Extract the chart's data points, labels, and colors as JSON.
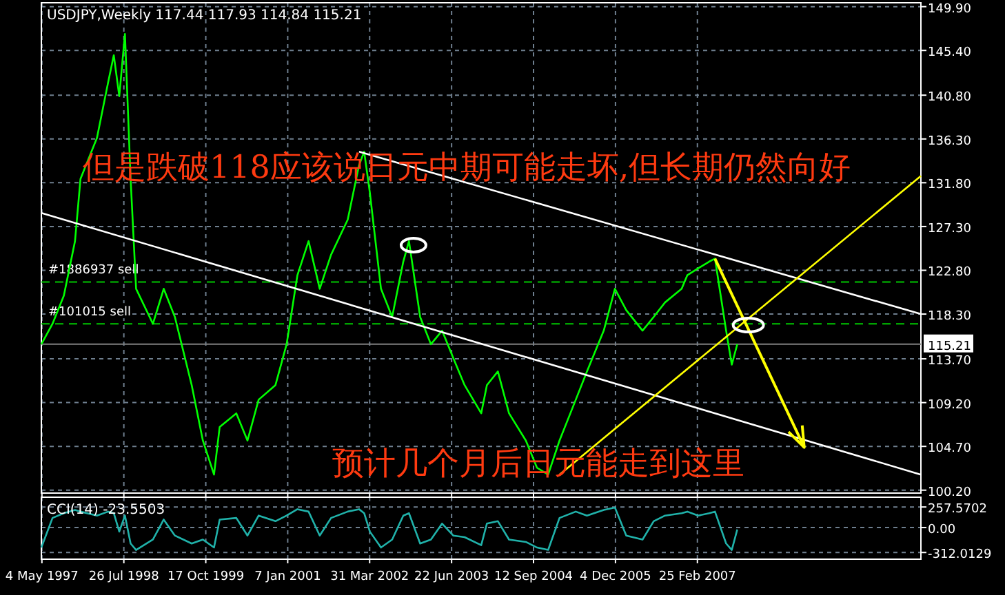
{
  "chart_data": [
    {
      "type": "line",
      "title": "USDJPY,Weekly  117.44 117.93 114.84 115.21",
      "x": [
        "1997-05",
        "1997-07",
        "1997-09",
        "1997-11",
        "1997-12",
        "1998-03",
        "1998-05",
        "1998-06",
        "1998-07",
        "1998-08",
        "1998-09",
        "1998-10",
        "1999-01",
        "1999-03",
        "1999-05",
        "1999-08",
        "1999-10",
        "1999-12",
        "2000-01",
        "2000-04",
        "2000-06",
        "2000-08",
        "2000-11",
        "2001-01",
        "2001-03",
        "2001-05",
        "2001-07",
        "2001-09",
        "2001-12",
        "2002-02",
        "2002-03",
        "2002-04",
        "2002-06",
        "2002-08",
        "2002-10",
        "2002-11",
        "2003-01",
        "2003-03",
        "2003-05",
        "2003-07",
        "2003-09",
        "2003-12",
        "2004-01",
        "2004-03",
        "2004-05",
        "2004-08",
        "2004-10",
        "2004-12",
        "2005-02",
        "2005-05",
        "2005-07",
        "2005-10",
        "2005-12",
        "2006-02",
        "2006-05",
        "2006-07",
        "2006-09",
        "2006-12",
        "2007-01",
        "2007-03",
        "2007-05",
        "2007-06",
        "2007-08",
        "2007-09",
        "2007-10"
      ],
      "series": [
        {
          "color": "#00ff00",
          "values": [
            115.2,
            117.3,
            120.2,
            125.8,
            132.2,
            136.4,
            142.1,
            144.9,
            140.7,
            147.1,
            132.2,
            120.9,
            117.3,
            120.9,
            118.0,
            111.0,
            105.3,
            101.8,
            106.7,
            108.1,
            105.3,
            109.5,
            111.0,
            115.2,
            122.3,
            125.8,
            120.9,
            124.4,
            128.0,
            133.6,
            135.0,
            130.8,
            120.9,
            118.0,
            123.7,
            125.8,
            118.0,
            115.2,
            116.6,
            113.8,
            111.0,
            108.1,
            111.0,
            112.4,
            108.1,
            105.3,
            102.5,
            101.8,
            105.3,
            109.5,
            112.4,
            116.6,
            120.9,
            118.7,
            116.6,
            118.0,
            119.5,
            120.9,
            122.3,
            123.0,
            123.7,
            124.0,
            116.6,
            113.1,
            115.2
          ]
        },
        {
          "type": "line",
          "color": "#ffffff",
          "x": [
            "2002-02",
            "2010-07"
          ],
          "values": [
            135.0,
            118.3
          ]
        },
        {
          "type": "line",
          "color": "#ffffff",
          "x": [
            "1997-05",
            "2010-07"
          ],
          "values": [
            128.7,
            101.8
          ]
        },
        {
          "type": "line",
          "color": "#ffff00",
          "x": [
            "2005-02",
            "2010-07"
          ],
          "values": [
            101.8,
            132.5
          ]
        },
        {
          "type": "line",
          "color": "#ffff00",
          "x": [
            "2007-06",
            "2008-10"
          ],
          "values": [
            124.0,
            104.6
          ]
        }
      ],
      "ref_lines": [
        {
          "axis": "y",
          "value": 121.6,
          "label": "#1886937 sell",
          "color": "#00c800",
          "line_style": "dashed"
        },
        {
          "axis": "y",
          "value": 117.3,
          "label": "#101015 sell",
          "color": "#00c800",
          "line_style": "dashed"
        },
        {
          "axis": "y",
          "value": 115.21,
          "label": "115.21",
          "color": "#808080",
          "line_style": "solid"
        }
      ],
      "annotations": [
        "但是跌破118应该说日元中期可能走坏,但长期仍然向好",
        "预计几个月后日元能走到这里"
      ],
      "xlim": [
        "1997-05",
        "2010-07"
      ],
      "ylim": [
        99.9,
        150.3
      ],
      "yticks": [
        {
          "value": 149.9,
          "label": "149.90"
        },
        {
          "value": 145.4,
          "label": "145.40"
        },
        {
          "value": 140.8,
          "label": "140.80"
        },
        {
          "value": 136.3,
          "label": "136.30"
        },
        {
          "value": 131.8,
          "label": "131.80"
        },
        {
          "value": 127.3,
          "label": "127.30"
        },
        {
          "value": 122.8,
          "label": "122.80"
        },
        {
          "value": 118.3,
          "label": "118.30"
        },
        {
          "value": 113.7,
          "label": "113.70"
        },
        {
          "value": 109.2,
          "label": "109.20"
        },
        {
          "value": 104.7,
          "label": "104.70"
        },
        {
          "value": 100.2,
          "label": "100.20"
        }
      ],
      "xticks": [
        {
          "value": "1997-05-04",
          "label": null
        },
        {
          "value": "1998-07-26",
          "label": null
        },
        {
          "value": "1999-10-17",
          "label": null
        },
        {
          "value": "2001-01-07",
          "label": null
        },
        {
          "value": "2002-03-31",
          "label": null
        },
        {
          "value": "2003-06-22",
          "label": null
        },
        {
          "value": "2004-09-12",
          "label": null
        },
        {
          "value": "2005-12-04",
          "label": null
        },
        {
          "value": "2007-02-25",
          "label": null
        }
      ],
      "grid": true,
      "tick_labels": "y"
    },
    {
      "type": "line",
      "title": "CCI(14) -23.5503",
      "x": [
        "1997-05",
        "1997-07",
        "1997-09",
        "1997-11",
        "1997-12",
        "1998-03",
        "1998-05",
        "1998-06",
        "1998-07",
        "1998-08",
        "1998-09",
        "1998-10",
        "1999-01",
        "1999-03",
        "1999-05",
        "1999-08",
        "1999-10",
        "1999-12",
        "2000-01",
        "2000-04",
        "2000-06",
        "2000-08",
        "2000-11",
        "2001-01",
        "2001-03",
        "2001-05",
        "2001-07",
        "2001-09",
        "2001-12",
        "2002-02",
        "2002-03",
        "2002-04",
        "2002-06",
        "2002-08",
        "2002-10",
        "2002-11",
        "2003-01",
        "2003-03",
        "2003-05",
        "2003-07",
        "2003-09",
        "2003-12",
        "2004-01",
        "2004-03",
        "2004-05",
        "2004-08",
        "2004-10",
        "2004-12",
        "2005-02",
        "2005-05",
        "2005-07",
        "2005-10",
        "2005-12",
        "2006-02",
        "2006-05",
        "2006-07",
        "2006-09",
        "2006-12",
        "2007-01",
        "2007-03",
        "2007-05",
        "2007-06",
        "2007-08",
        "2007-09",
        "2007-10"
      ],
      "series": [
        {
          "color": "#20b2aa",
          "values": [
            -250,
            120,
            180,
            220,
            200,
            150,
            200,
            180,
            -50,
            150,
            -200,
            -280,
            -150,
            100,
            -100,
            -200,
            -150,
            -250,
            100,
            120,
            -100,
            150,
            80,
            150,
            230,
            200,
            -100,
            120,
            200,
            230,
            180,
            -50,
            -250,
            -150,
            150,
            180,
            -200,
            -150,
            50,
            -100,
            -120,
            -220,
            50,
            80,
            -150,
            -180,
            -250,
            -280,
            120,
            200,
            150,
            220,
            250,
            -100,
            -150,
            80,
            150,
            180,
            200,
            150,
            180,
            200,
            -200,
            -280,
            -24
          ]
        }
      ],
      "xlim": [
        "1997-05",
        "2010-07"
      ],
      "ylim": [
        -396,
        380
      ],
      "yticks": [
        {
          "value": 257.5702,
          "label": "257.5702"
        },
        {
          "value": 0,
          "label": "0.00"
        },
        {
          "value": -312.0129,
          "label": "-312.0129"
        }
      ],
      "xticks": [
        {
          "value": "1997-05-04",
          "label": "4 May 1997"
        },
        {
          "value": "1998-07-26",
          "label": "26 Jul 1998"
        },
        {
          "value": "1999-10-17",
          "label": "17 Oct 1999"
        },
        {
          "value": "2001-01-07",
          "label": "7 Jan 2001"
        },
        {
          "value": "2002-03-31",
          "label": "31 Mar 2002"
        },
        {
          "value": "2003-06-22",
          "label": "22 Jun 2003"
        },
        {
          "value": "2004-09-12",
          "label": "12 Sep 2004"
        },
        {
          "value": "2005-12-04",
          "label": "4 Dec 2005"
        },
        {
          "value": "2007-02-25",
          "label": "25 Feb 2007"
        }
      ],
      "grid": true
    }
  ]
}
